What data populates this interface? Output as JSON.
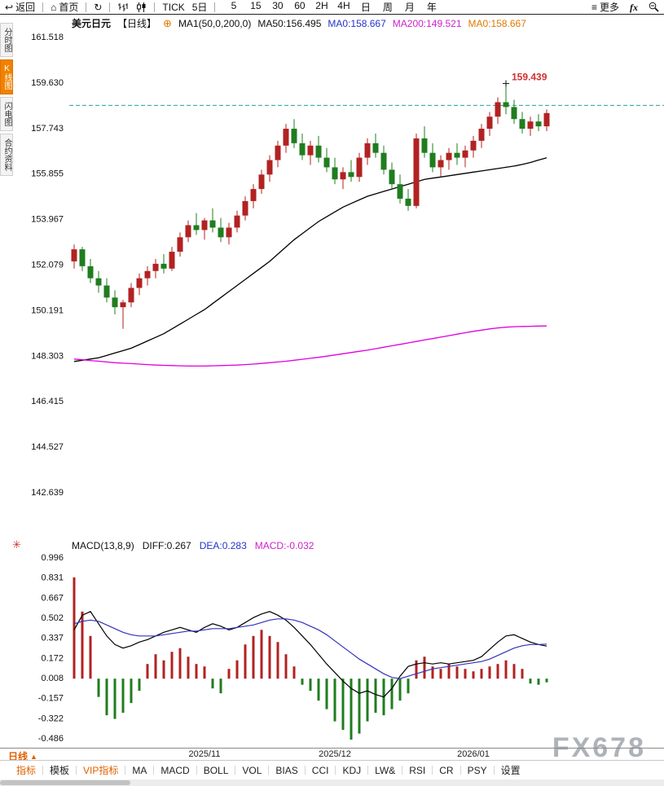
{
  "toolbar": {
    "back_label": "返回",
    "home_label": "首页",
    "tick_label": "TICK",
    "five_day_label": "5日",
    "intervals": [
      "5",
      "15",
      "30",
      "60",
      "2H",
      "4H",
      "日",
      "周",
      "月",
      "年"
    ],
    "more_label": "更多",
    "fx_label": "fx"
  },
  "sidebar": {
    "items": [
      {
        "label": "分时图",
        "active": false
      },
      {
        "label": "K线图",
        "active": true
      },
      {
        "label": "闪电图",
        "active": false
      },
      {
        "label": "合约资料",
        "active": false
      }
    ]
  },
  "chart_header": {
    "symbol": "美元日元",
    "period": "【日线】",
    "ma_group": "MA1(50,0,200,0)",
    "ma50_text": "MA50:156.495",
    "ma0_blue_text": "MA0:158.667",
    "ma200_text": "MA200:149.521",
    "ma0_orange_text": "MA0:158.667"
  },
  "macd_header": {
    "title": "MACD(13,8,9)",
    "diff_text": "DIFF:0.267",
    "dea_text": "DEA:0.283",
    "macd_text": "MACD:-0.032"
  },
  "watermark": "FX678",
  "bottom": {
    "period_tab": "日线",
    "period_arrow": "▲",
    "tabs": [
      "指标",
      "模板",
      "VIP指标",
      "MA",
      "MACD",
      "BOLL",
      "VOL",
      "BIAS",
      "CCI",
      "KDJ",
      "LW&",
      "RSI",
      "CR",
      "PSY",
      "设置"
    ]
  },
  "chart_data": {
    "type": "candlestick+macd",
    "title": "美元日元 日线 (USD/JPY Daily)",
    "price_axis": [
      "161.518",
      "159.630",
      "157.743",
      "155.855",
      "153.967",
      "152.079",
      "150.191",
      "148.303",
      "146.415",
      "144.527",
      "142.639"
    ],
    "macd_axis": [
      "0.996",
      "0.831",
      "0.667",
      "0.502",
      "0.337",
      "0.172",
      "0.008",
      "-0.157",
      "-0.322",
      "-0.486"
    ],
    "dashed_price": 158.667,
    "peak_label": "159.439",
    "peak_index": 53,
    "x_labels": [
      {
        "label": "2025/11",
        "index": 16
      },
      {
        "label": "2025/12",
        "index": 32
      },
      {
        "label": "2026/01",
        "index": 49
      }
    ],
    "candles": [
      [
        152.2,
        152.9,
        151.9,
        152.7
      ],
      [
        152.7,
        152.8,
        151.8,
        152.0
      ],
      [
        152.0,
        152.3,
        151.3,
        151.5
      ],
      [
        151.5,
        151.8,
        150.9,
        151.2
      ],
      [
        151.2,
        151.5,
        150.5,
        150.7
      ],
      [
        150.7,
        151.0,
        150.0,
        150.3
      ],
      [
        150.3,
        150.6,
        149.4,
        150.5
      ],
      [
        150.5,
        151.3,
        150.3,
        151.1
      ],
      [
        151.1,
        151.7,
        150.8,
        151.5
      ],
      [
        151.5,
        152.0,
        151.2,
        151.8
      ],
      [
        151.8,
        152.3,
        151.5,
        152.1
      ],
      [
        152.1,
        152.5,
        151.7,
        151.9
      ],
      [
        151.9,
        152.8,
        151.8,
        152.6
      ],
      [
        152.6,
        153.4,
        152.4,
        153.2
      ],
      [
        153.2,
        153.9,
        153.0,
        153.7
      ],
      [
        153.7,
        154.2,
        153.3,
        153.5
      ],
      [
        153.5,
        154.0,
        153.1,
        153.9
      ],
      [
        153.9,
        154.4,
        153.4,
        153.6
      ],
      [
        153.6,
        154.0,
        153.0,
        153.2
      ],
      [
        153.2,
        153.8,
        152.9,
        153.6
      ],
      [
        153.6,
        154.3,
        153.4,
        154.1
      ],
      [
        154.1,
        154.9,
        153.9,
        154.7
      ],
      [
        154.7,
        155.4,
        154.4,
        155.2
      ],
      [
        155.2,
        156.0,
        155.0,
        155.8
      ],
      [
        155.8,
        156.6,
        155.5,
        156.4
      ],
      [
        156.4,
        157.2,
        156.1,
        157.0
      ],
      [
        157.0,
        157.9,
        156.7,
        157.7
      ],
      [
        157.7,
        158.1,
        156.9,
        157.1
      ],
      [
        157.1,
        157.5,
        156.4,
        156.6
      ],
      [
        156.6,
        157.2,
        156.2,
        157.0
      ],
      [
        157.0,
        157.4,
        156.3,
        156.5
      ],
      [
        156.5,
        156.9,
        155.9,
        156.1
      ],
      [
        156.1,
        156.5,
        155.4,
        155.6
      ],
      [
        155.6,
        156.1,
        155.2,
        155.9
      ],
      [
        155.9,
        156.4,
        155.5,
        155.7
      ],
      [
        155.7,
        156.7,
        155.5,
        156.5
      ],
      [
        156.5,
        157.3,
        156.2,
        157.1
      ],
      [
        157.1,
        157.5,
        156.5,
        156.7
      ],
      [
        156.7,
        157.0,
        155.8,
        156.0
      ],
      [
        156.0,
        156.3,
        155.2,
        155.4
      ],
      [
        155.4,
        155.8,
        154.6,
        154.8
      ],
      [
        154.8,
        155.2,
        154.3,
        154.5
      ],
      [
        154.5,
        157.5,
        154.4,
        157.3
      ],
      [
        157.3,
        157.8,
        156.5,
        156.7
      ],
      [
        156.7,
        157.1,
        155.9,
        156.1
      ],
      [
        156.1,
        156.6,
        155.7,
        156.4
      ],
      [
        156.4,
        156.9,
        156.0,
        156.7
      ],
      [
        156.7,
        157.1,
        156.2,
        156.5
      ],
      [
        156.5,
        157.0,
        156.1,
        156.8
      ],
      [
        156.8,
        157.4,
        156.5,
        157.2
      ],
      [
        157.2,
        157.9,
        156.9,
        157.7
      ],
      [
        157.7,
        158.4,
        157.4,
        158.2
      ],
      [
        158.2,
        159.0,
        157.9,
        158.8
      ],
      [
        158.8,
        159.439,
        158.3,
        158.6
      ],
      [
        158.6,
        158.9,
        157.9,
        158.1
      ],
      [
        158.1,
        158.4,
        157.5,
        157.7
      ],
      [
        157.7,
        158.2,
        157.4,
        158.0
      ],
      [
        158.0,
        158.3,
        157.6,
        157.8
      ],
      [
        157.8,
        158.5,
        157.6,
        158.35
      ]
    ],
    "ma50": [
      148.05,
      148.1,
      148.15,
      148.2,
      148.3,
      148.4,
      148.5,
      148.6,
      148.75,
      148.9,
      149.05,
      149.2,
      149.4,
      149.6,
      149.8,
      150.0,
      150.2,
      150.45,
      150.7,
      150.95,
      151.2,
      151.45,
      151.7,
      151.95,
      152.2,
      152.5,
      152.8,
      153.1,
      153.35,
      153.6,
      153.85,
      154.05,
      154.25,
      154.45,
      154.6,
      154.75,
      154.9,
      155.0,
      155.1,
      155.2,
      155.3,
      155.4,
      155.5,
      155.6,
      155.65,
      155.7,
      155.75,
      155.8,
      155.85,
      155.9,
      155.95,
      156.0,
      156.05,
      156.1,
      156.15,
      156.22,
      156.3,
      156.4,
      156.495
    ],
    "ma200": [
      148.15,
      148.12,
      148.09,
      148.06,
      148.03,
      148.0,
      147.98,
      147.96,
      147.94,
      147.92,
      147.9,
      147.89,
      147.88,
      147.87,
      147.86,
      147.86,
      147.86,
      147.87,
      147.88,
      147.89,
      147.9,
      147.92,
      147.94,
      147.97,
      148.0,
      148.03,
      148.06,
      148.1,
      148.14,
      148.18,
      148.22,
      148.27,
      148.32,
      148.37,
      148.42,
      148.47,
      148.52,
      148.58,
      148.64,
      148.7,
      148.76,
      148.82,
      148.88,
      148.94,
      149.0,
      149.06,
      149.12,
      149.18,
      149.24,
      149.3,
      149.35,
      149.4,
      149.44,
      149.47,
      149.49,
      149.5,
      149.51,
      149.52,
      149.521
    ],
    "macd_hist": [
      0.83,
      0.55,
      0.35,
      -0.15,
      -0.3,
      -0.33,
      -0.28,
      -0.2,
      -0.1,
      0.12,
      0.2,
      0.15,
      0.22,
      0.25,
      0.18,
      0.12,
      0.1,
      -0.08,
      -0.12,
      0.08,
      0.15,
      0.28,
      0.35,
      0.4,
      0.35,
      0.3,
      0.2,
      0.1,
      -0.05,
      -0.1,
      -0.18,
      -0.25,
      -0.35,
      -0.42,
      -0.5,
      -0.45,
      -0.35,
      -0.28,
      -0.3,
      -0.25,
      -0.18,
      -0.12,
      0.15,
      0.18,
      0.1,
      0.08,
      0.12,
      0.1,
      0.08,
      0.06,
      0.08,
      0.1,
      0.12,
      0.15,
      0.12,
      0.08,
      -0.04,
      -0.05,
      -0.03
    ],
    "diff": [
      0.4,
      0.52,
      0.55,
      0.45,
      0.35,
      0.28,
      0.25,
      0.27,
      0.3,
      0.32,
      0.35,
      0.38,
      0.4,
      0.42,
      0.4,
      0.38,
      0.42,
      0.45,
      0.43,
      0.4,
      0.42,
      0.46,
      0.5,
      0.53,
      0.55,
      0.52,
      0.48,
      0.42,
      0.35,
      0.28,
      0.2,
      0.12,
      0.05,
      -0.02,
      -0.08,
      -0.12,
      -0.1,
      -0.13,
      -0.15,
      -0.08,
      0.02,
      0.1,
      0.12,
      0.13,
      0.12,
      0.13,
      0.12,
      0.13,
      0.14,
      0.15,
      0.18,
      0.24,
      0.3,
      0.35,
      0.36,
      0.33,
      0.3,
      0.28,
      0.267
    ],
    "dea": [
      0.45,
      0.47,
      0.48,
      0.47,
      0.44,
      0.41,
      0.38,
      0.36,
      0.35,
      0.35,
      0.35,
      0.36,
      0.37,
      0.38,
      0.39,
      0.39,
      0.4,
      0.41,
      0.41,
      0.41,
      0.42,
      0.43,
      0.44,
      0.46,
      0.48,
      0.49,
      0.49,
      0.48,
      0.46,
      0.43,
      0.4,
      0.36,
      0.31,
      0.26,
      0.21,
      0.16,
      0.12,
      0.08,
      0.04,
      0.01,
      0.0,
      0.02,
      0.04,
      0.06,
      0.08,
      0.09,
      0.1,
      0.11,
      0.12,
      0.13,
      0.14,
      0.16,
      0.19,
      0.22,
      0.25,
      0.27,
      0.28,
      0.28,
      0.283
    ],
    "colors": {
      "up": "#b22222",
      "down": "#1f7d1f",
      "ma50": "#000000",
      "ma200": "#e000e0",
      "diff": "#000000",
      "dea": "#3333bb",
      "dashed": "#2e9e9e",
      "annotation": "#d03030",
      "accent": "#e06000"
    }
  }
}
